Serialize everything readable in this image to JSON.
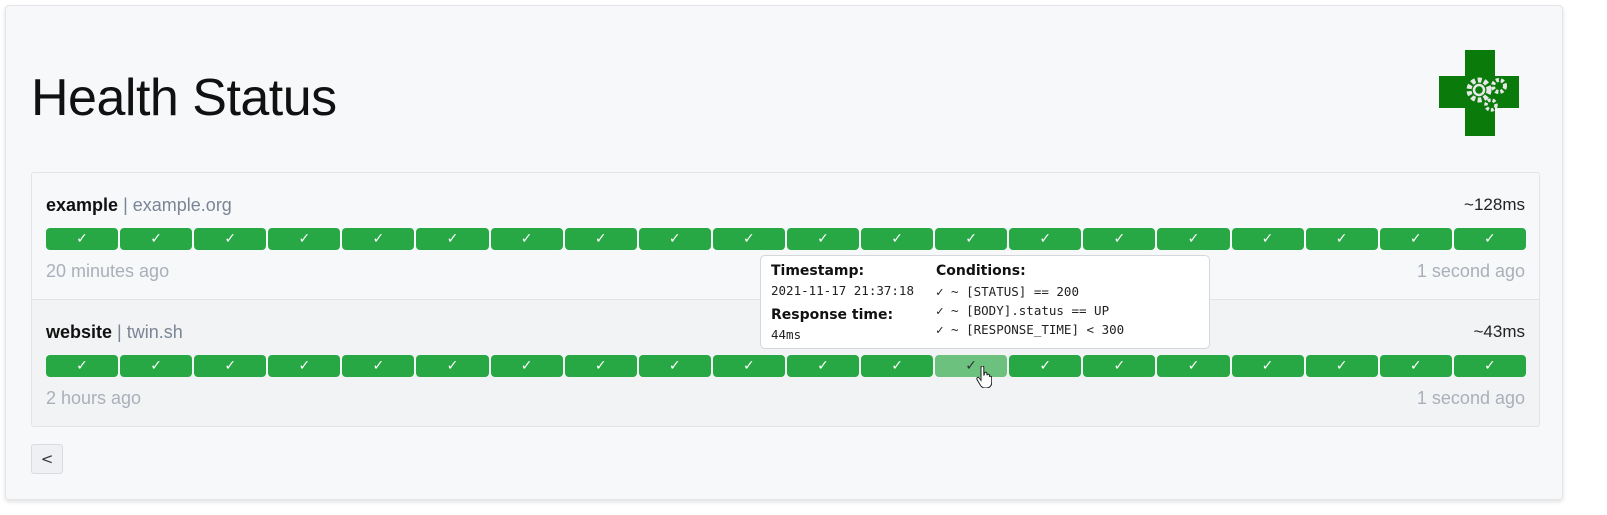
{
  "header": {
    "title": "Health Status",
    "logo": "health-gears-logo"
  },
  "services": [
    {
      "name": "example",
      "host": "example.org",
      "response_time": "~128ms",
      "oldest": "20 minutes ago",
      "newest": "1 second ago",
      "results": [
        "✓",
        "✓",
        "✓",
        "✓",
        "✓",
        "✓",
        "✓",
        "✓",
        "✓",
        "✓",
        "✓",
        "✓",
        "✓",
        "✓",
        "✓",
        "✓",
        "✓",
        "✓",
        "✓",
        "✓"
      ]
    },
    {
      "name": "website",
      "host": "twin.sh",
      "response_time": "~43ms",
      "oldest": "2 hours ago",
      "newest": "1 second ago",
      "results": [
        "✓",
        "✓",
        "✓",
        "✓",
        "✓",
        "✓",
        "✓",
        "✓",
        "✓",
        "✓",
        "✓",
        "✓",
        "✓",
        "✓",
        "✓",
        "✓",
        "✓",
        "✓",
        "✓",
        "✓"
      ]
    }
  ],
  "separator": "|",
  "tooltip": {
    "timestamp_label": "Timestamp:",
    "timestamp": "2021-11-17 21:37:18",
    "response_label": "Response time:",
    "response": "44ms",
    "conditions_label": "Conditions:",
    "conditions": [
      "✓ ~ [STATUS] == 200",
      "✓ ~ [BODY].status == UP",
      "✓ ~ [RESPONSE_TIME] < 300"
    ]
  },
  "pagination": {
    "back": "<"
  },
  "colors": {
    "success": "#28a745",
    "hover": "#6cc17f",
    "logo": "#0a7a0a"
  }
}
